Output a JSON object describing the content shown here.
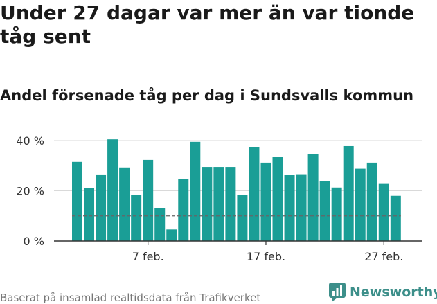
{
  "title": "Under 27 dagar var mer än var tionde tåg sent",
  "subtitle": "Andel försenade tåg per dag i Sundsvalls kommun",
  "footer": "Baserat på insamlad realtidsdata från Trafikverket",
  "brand": {
    "name": "Newsworthy",
    "color": "#3d8f8a",
    "icon": "bar-chart-logo-icon"
  },
  "chart_data": {
    "type": "bar",
    "title": "Andel försenade tåg per dag i Sundsvalls kommun",
    "categories": [
      "1 feb.",
      "2 feb.",
      "3 feb.",
      "4 feb.",
      "5 feb.",
      "6 feb.",
      "7 feb.",
      "8 feb.",
      "9 feb.",
      "10 feb.",
      "11 feb.",
      "12 feb.",
      "13 feb.",
      "14 feb.",
      "15 feb.",
      "16 feb.",
      "17 feb.",
      "18 feb.",
      "19 feb.",
      "20 feb.",
      "21 feb.",
      "22 feb.",
      "23 feb.",
      "24 feb.",
      "25 feb.",
      "26 feb.",
      "27 feb.",
      "28 feb."
    ],
    "values": [
      31.5,
      21,
      26.5,
      40.5,
      29.3,
      18.3,
      32.3,
      13,
      4.6,
      24.6,
      39.5,
      29.5,
      29.5,
      29.5,
      18.3,
      37.3,
      31.2,
      33.5,
      26.3,
      26.6,
      34.6,
      24,
      21.3,
      37.8,
      28.8,
      31.2,
      23,
      18
    ],
    "bar_color": "#1a9e96",
    "reference_line": {
      "value": 10,
      "style": "dashed",
      "color": "#666666"
    },
    "yticks": [
      0,
      20,
      40
    ],
    "ytick_labels": [
      "0 %",
      "20 %",
      "40 %"
    ],
    "xtick_labels": [
      {
        "category": "7 feb.",
        "label": "7 feb."
      },
      {
        "category": "17 feb.",
        "label": "17 feb."
      },
      {
        "category": "27 feb.",
        "label": "27 feb."
      }
    ],
    "ylim": [
      0,
      44
    ],
    "grid": true,
    "xlabel": "",
    "ylabel": ""
  }
}
